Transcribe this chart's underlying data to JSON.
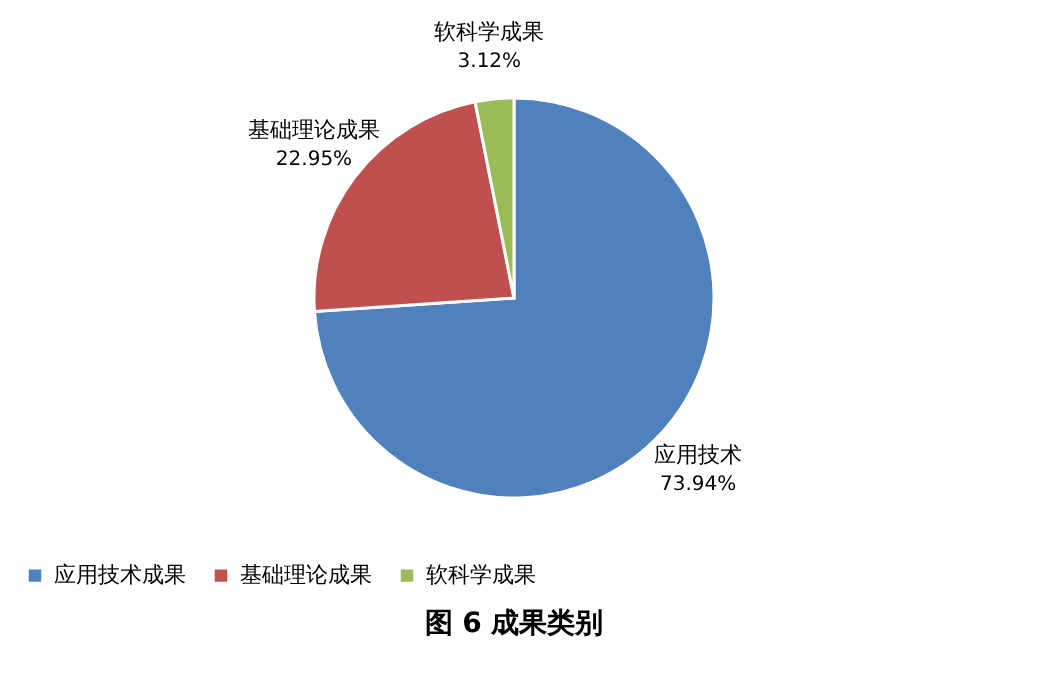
{
  "chart_data": {
    "type": "pie",
    "title": "图 6     成果类别",
    "categories": [
      "应用技术成果",
      "基础理论成果",
      "软科学成果"
    ],
    "values": [
      73.94,
      22.95,
      3.12
    ],
    "colors": [
      "#4f81bd",
      "#c0504d",
      "#9bbb59"
    ],
    "value_labels": [
      "73.94%",
      "22.95%",
      "3.12%"
    ],
    "annotations": [
      "应用技术",
      "基础理论成果",
      "软科学成果"
    ],
    "legend": "bottom"
  }
}
